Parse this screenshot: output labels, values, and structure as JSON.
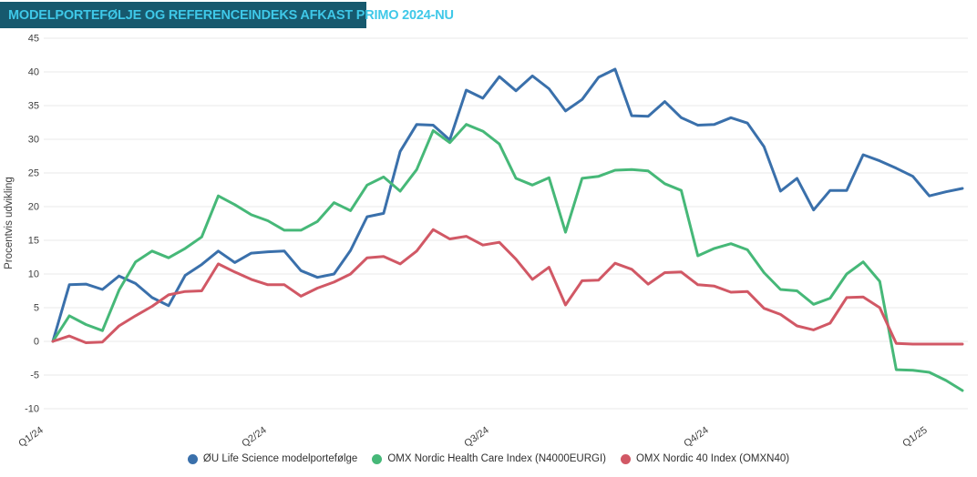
{
  "title": "MODELPORTEFØLJE OG REFERENCEINDEKS AFKAST PRIMO 2024-NU",
  "colors": {
    "title_bar_bg": "#17596e",
    "title_text": "#3fc8e8",
    "grid": "#e8e8e8",
    "tick_text": "#3f3f3f"
  },
  "chart_data": {
    "type": "line",
    "title": "MODELPORTEFØLJE OG REFERENCEINDEKS AFKAST PRIMO 2024-NU",
    "xlabel": "",
    "ylabel": "Procentvis udvikling",
    "ylim": [
      -10,
      45
    ],
    "yticks": [
      45,
      40,
      35,
      30,
      25,
      20,
      15,
      10,
      5,
      0,
      -5,
      -10
    ],
    "xticks": [
      "Q1/24",
      "Q2/24",
      "Q3/24",
      "Q4/24",
      "Q1/25"
    ],
    "grid": "horizontal-only",
    "legend_position": "bottom-center",
    "x_unit": "week",
    "series": [
      {
        "name": "ØU Life Science modelportefølge",
        "color": "#3a70ab",
        "values": [
          0,
          8.4,
          8.5,
          7.7,
          9.7,
          8.6,
          6.5,
          5.3,
          9.8,
          11.4,
          13.4,
          11.7,
          13.1,
          13.3,
          13.4,
          10.5,
          9.5,
          10.0,
          13.5,
          18.5,
          19.0,
          28.2,
          32.2,
          32.1,
          29.9,
          37.3,
          36.1,
          39.3,
          37.2,
          39.4,
          37.5,
          34.2,
          35.9,
          39.2,
          40.4,
          33.5,
          33.4,
          35.6,
          33.2,
          32.1,
          32.2,
          33.2,
          32.4,
          28.9,
          22.3,
          24.2,
          19.5,
          22.4,
          22.4,
          27.7,
          26.8,
          25.7,
          24.5,
          21.6,
          22.2,
          22.7
        ]
      },
      {
        "name": "OMX Nordic Health Care Index (N4000EURGI)",
        "color": "#46b878",
        "values": [
          0,
          3.8,
          2.5,
          1.6,
          7.6,
          11.8,
          13.4,
          12.4,
          13.8,
          15.5,
          21.6,
          20.3,
          18.8,
          17.9,
          16.5,
          16.5,
          17.8,
          20.6,
          19.4,
          23.2,
          24.4,
          22.3,
          25.5,
          31.3,
          29.5,
          32.2,
          31.2,
          29.3,
          24.2,
          23.2,
          24.3,
          16.2,
          24.2,
          24.5,
          25.4,
          25.5,
          25.3,
          23.4,
          22.4,
          12.7,
          13.8,
          14.5,
          13.6,
          10.2,
          7.7,
          7.5,
          5.5,
          6.4,
          10.0,
          11.8,
          8.9,
          -4.2,
          -4.3,
          -4.6,
          -5.8,
          -7.3
        ]
      },
      {
        "name": "OMX Nordic 40 Index (OMXN40)",
        "color": "#d15865",
        "values": [
          0,
          0.8,
          -0.2,
          -0.1,
          2.3,
          3.8,
          5.2,
          6.9,
          7.4,
          7.5,
          11.5,
          10.3,
          9.2,
          8.4,
          8.4,
          6.7,
          7.9,
          8.8,
          10.0,
          12.4,
          12.6,
          11.5,
          13.4,
          16.6,
          15.2,
          15.6,
          14.3,
          14.7,
          12.2,
          9.2,
          11.0,
          5.4,
          9.0,
          9.1,
          11.6,
          10.7,
          8.5,
          10.2,
          10.3,
          8.4,
          8.2,
          7.3,
          7.4,
          4.9,
          4.0,
          2.3,
          1.7,
          2.7,
          6.5,
          6.6,
          5.0,
          -0.3,
          -0.4,
          -0.4,
          -0.4,
          -0.4
        ]
      }
    ]
  }
}
